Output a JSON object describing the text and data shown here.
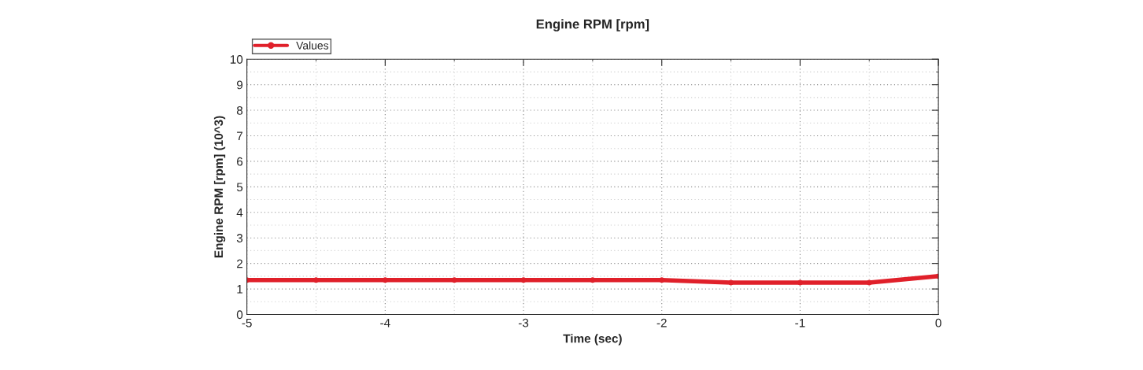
{
  "chart_data": {
    "type": "line",
    "title": "Engine RPM [rpm]",
    "xlabel": "Time (sec)",
    "ylabel": "Engine RPM [rpm] (10^3)",
    "x": [
      -5,
      -4.5,
      -4,
      -3.5,
      -3,
      -2.5,
      -2,
      -1.5,
      -1,
      -0.5,
      0
    ],
    "series": [
      {
        "name": "Values",
        "color": "#e0202a",
        "values": [
          1.35,
          1.35,
          1.35,
          1.35,
          1.35,
          1.35,
          1.35,
          1.25,
          1.25,
          1.25,
          1.5
        ]
      }
    ],
    "xlim": [
      -5,
      0
    ],
    "xticks": [
      -5,
      -4,
      -3,
      -2,
      -1,
      0
    ],
    "ylim": [
      0,
      10
    ],
    "yticks": [
      0,
      1,
      2,
      3,
      4,
      5,
      6,
      7,
      8,
      9,
      10
    ],
    "grid": true,
    "legend": "top left",
    "marker": "circle",
    "line_style": "solid"
  }
}
